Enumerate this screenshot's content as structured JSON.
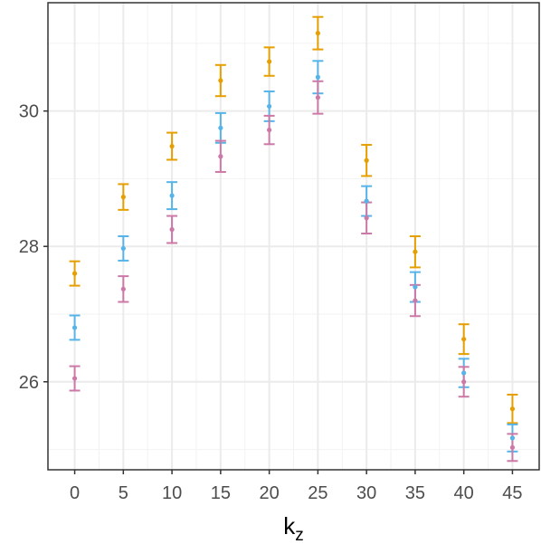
{
  "chart_data": {
    "type": "scatter",
    "title": "",
    "xlabel": "k",
    "xlabel_subscript": "z",
    "ylabel": "",
    "x": [
      0,
      5,
      10,
      15,
      20,
      25,
      30,
      35,
      40,
      45
    ],
    "x_ticks": [
      "0",
      "5",
      "10",
      "15",
      "20",
      "25",
      "30",
      "35",
      "40",
      "45"
    ],
    "y_ticks": [
      "26",
      "28",
      "30"
    ],
    "ylim": [
      24.7,
      31.6
    ],
    "xlim": [
      -2.75,
      47.75
    ],
    "grid": true,
    "legend": "none",
    "error_bars": true,
    "series": [
      {
        "color": "#E69F00",
        "values": [
          27.6,
          28.73,
          29.48,
          30.45,
          30.73,
          31.15,
          29.27,
          27.92,
          26.63,
          25.6
        ],
        "err": [
          0.18,
          0.19,
          0.2,
          0.23,
          0.21,
          0.24,
          0.23,
          0.23,
          0.22,
          0.21
        ]
      },
      {
        "color": "#56B4E9",
        "values": [
          26.8,
          27.97,
          28.75,
          29.75,
          30.07,
          30.5,
          28.67,
          27.4,
          26.13,
          25.17
        ],
        "err": [
          0.18,
          0.18,
          0.2,
          0.22,
          0.22,
          0.24,
          0.22,
          0.22,
          0.21,
          0.2
        ]
      },
      {
        "color": "#CC79A7",
        "values": [
          26.05,
          27.37,
          28.25,
          29.33,
          29.72,
          30.2,
          28.42,
          27.2,
          26.0,
          25.03
        ],
        "err": [
          0.18,
          0.19,
          0.2,
          0.23,
          0.21,
          0.24,
          0.23,
          0.23,
          0.22,
          0.2
        ]
      }
    ]
  }
}
